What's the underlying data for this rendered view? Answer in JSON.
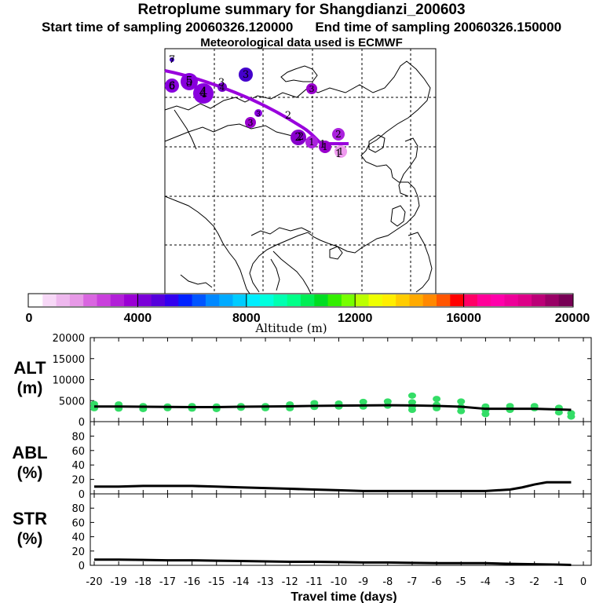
{
  "header": {
    "title": "Retroplume summary for Shangdianzi_200603",
    "start_time": "Start time of sampling 20060326.120000",
    "end_time": "End time of sampling 20060326.150000",
    "met_data": "Meteorological data used is ECMWF"
  },
  "colors": {
    "plume_line": "#9900dd",
    "scatter_points": "#33dd66",
    "curve": "#000000"
  },
  "map": {
    "path_numbers": [
      "1",
      "1",
      "2",
      "2",
      "3",
      "4",
      "5",
      "6",
      "7"
    ],
    "clusters": [
      {
        "label": "1",
        "color": "#ee99ee"
      },
      {
        "label": "1",
        "color": "#aa22dd"
      },
      {
        "label": "1",
        "color": "#9900cc"
      },
      {
        "label": "2",
        "color": "#aa22dd"
      },
      {
        "label": "2",
        "color": "#8800cc"
      },
      {
        "label": "3",
        "color": "#9900cc"
      },
      {
        "label": "3",
        "color": "#9900cc"
      },
      {
        "label": "3",
        "color": "#8800dd"
      },
      {
        "label": "3",
        "color": "#4400cc"
      },
      {
        "label": "4",
        "color": "#8800dd"
      },
      {
        "label": "5",
        "color": "#8800dd"
      },
      {
        "label": "6",
        "color": "#8800dd"
      },
      {
        "label": "7",
        "color": "#4400cc"
      },
      {
        "label": "4",
        "color": "#7700cc"
      }
    ]
  },
  "colorbar": {
    "tick_labels": [
      "0",
      "4000",
      "8000",
      "12000",
      "16000",
      "20000"
    ],
    "label": "Altitude (m)",
    "colors": [
      "#ffffff",
      "#f7d8f7",
      "#eeb8ee",
      "#e799e7",
      "#d966e0",
      "#c940dc",
      "#b220d8",
      "#9a00d4",
      "#7a00d8",
      "#5500dc",
      "#3300ee",
      "#0022ff",
      "#0055ff",
      "#0088ff",
      "#00aaff",
      "#00ccff",
      "#00eeff",
      "#00ffdd",
      "#00ffb0",
      "#00ff88",
      "#00ee55",
      "#00dd22",
      "#33ee00",
      "#77ff00",
      "#bbff00",
      "#eeff00",
      "#ffee00",
      "#ffcc00",
      "#ffaa00",
      "#ff8800",
      "#ff5500",
      "#ff0000",
      "#ff0066",
      "#ff0099",
      "#ff00aa",
      "#ee0099",
      "#dd0088",
      "#bb0077",
      "#990066",
      "#770055"
    ]
  },
  "chart_data": [
    {
      "type": "line",
      "panel": "ALT",
      "ylabel": "ALT (m)",
      "ylim": [
        0,
        20000
      ],
      "yticks": [
        "0",
        "5000",
        "10000",
        "15000",
        "20000"
      ],
      "x": [
        -20,
        -19,
        -18,
        -17,
        -16,
        -15,
        -14,
        -13,
        -12,
        -11,
        -10,
        -9,
        -8,
        -7,
        -6,
        -5,
        -4,
        -3,
        -2,
        -1,
        -0.5
      ],
      "series": [
        {
          "name": "mean altitude",
          "values": [
            3600,
            3600,
            3550,
            3500,
            3450,
            3450,
            3550,
            3600,
            3650,
            3750,
            3800,
            3850,
            3900,
            3850,
            3750,
            3550,
            3050,
            3050,
            3050,
            2900,
            2800
          ]
        },
        {
          "name": "particle spread",
          "type": "scatter",
          "points": [
            [
              -20,
              3200
            ],
            [
              -20,
              4200
            ],
            [
              -19,
              3100
            ],
            [
              -19,
              4100
            ],
            [
              -18,
              3000
            ],
            [
              -18,
              3700
            ],
            [
              -17,
              3200
            ],
            [
              -17,
              3600
            ],
            [
              -16,
              3100
            ],
            [
              -16,
              3700
            ],
            [
              -15,
              3000
            ],
            [
              -15,
              3600
            ],
            [
              -14,
              3300
            ],
            [
              -14,
              3700
            ],
            [
              -13,
              3200
            ],
            [
              -13,
              3700
            ],
            [
              -12,
              3200
            ],
            [
              -12,
              4100
            ],
            [
              -11,
              3500
            ],
            [
              -11,
              4400
            ],
            [
              -10,
              3600
            ],
            [
              -10,
              4300
            ],
            [
              -9,
              3600
            ],
            [
              -9,
              4700
            ],
            [
              -8,
              3800
            ],
            [
              -8,
              4800
            ],
            [
              -7,
              2800
            ],
            [
              -7,
              3600
            ],
            [
              -7,
              4600
            ],
            [
              -7,
              6200
            ],
            [
              -6,
              3200
            ],
            [
              -6,
              4000
            ],
            [
              -6,
              5400
            ],
            [
              -5,
              2500
            ],
            [
              -5,
              3500
            ],
            [
              -5,
              4800
            ],
            [
              -4,
              1800
            ],
            [
              -4,
              2700
            ],
            [
              -4,
              3600
            ],
            [
              -3,
              2800
            ],
            [
              -3,
              3700
            ],
            [
              -2,
              3200
            ],
            [
              -2,
              3700
            ],
            [
              -1,
              2200
            ],
            [
              -1,
              3300
            ],
            [
              -0.5,
              1200
            ],
            [
              -0.5,
              2000
            ]
          ]
        }
      ]
    },
    {
      "type": "line",
      "panel": "ABL",
      "ylabel": "ABL (%)",
      "ylim": [
        0,
        100
      ],
      "yticks": [
        "0",
        "20",
        "40",
        "60",
        "80"
      ],
      "x": [
        -20,
        -19,
        -18,
        -17,
        -16,
        -15,
        -14,
        -13,
        -12,
        -11,
        -10,
        -9,
        -8,
        -7,
        -6,
        -5,
        -4,
        -3,
        -2.5,
        -2,
        -1.5,
        -1,
        -0.5
      ],
      "values": [
        10,
        10,
        11,
        11,
        11,
        10,
        9,
        8,
        7,
        6,
        5,
        4,
        4,
        4,
        4,
        4,
        4,
        6,
        9,
        13,
        16,
        16,
        16
      ]
    },
    {
      "type": "line",
      "panel": "STR",
      "ylabel": "STR (%)",
      "ylim": [
        0,
        100
      ],
      "yticks": [
        "0",
        "20",
        "40",
        "60",
        "80"
      ],
      "x": [
        -20,
        -19,
        -18,
        -17,
        -16,
        -15,
        -14,
        -13,
        -12,
        -11,
        -10,
        -9,
        -8,
        -7,
        -6,
        -5,
        -4,
        -3,
        -2,
        -1,
        -0.5
      ],
      "values": [
        8,
        8,
        7.5,
        7,
        7,
        6.5,
        6,
        5.5,
        5,
        5,
        4.5,
        4,
        4,
        3.5,
        3,
        3,
        3,
        2,
        1.5,
        1,
        0.5
      ],
      "xlabel": "Travel time (days)",
      "xticks": [
        "-20",
        "-19",
        "-18",
        "-17",
        "-16",
        "-15",
        "-14",
        "-13",
        "-12",
        "-11",
        "-10",
        "-9",
        "-8",
        "-7",
        "-6",
        "-5",
        "-4",
        "-3",
        "-2",
        "-1",
        "0"
      ]
    }
  ]
}
